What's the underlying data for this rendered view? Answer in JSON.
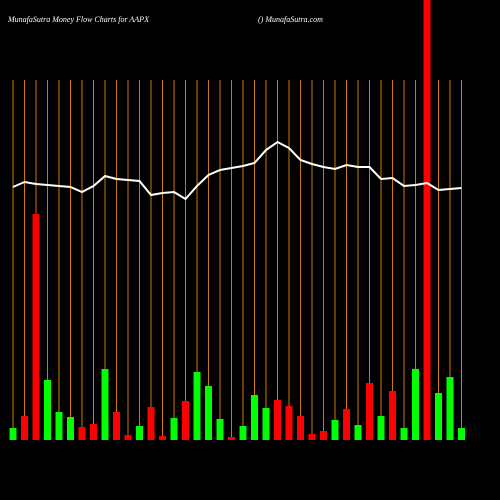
{
  "chart_data": {
    "type": "bar",
    "title": "MunafaSutra  Money Flow  Charts for AAPX",
    "subtitle": "() MunafaSutra.com",
    "ylim": [
      0,
      440
    ],
    "grid_color": "#cc7a00",
    "line_color": "#ffffff",
    "values": [
      12,
      24,
      226,
      60,
      28,
      23,
      13,
      16,
      71,
      28,
      5,
      14,
      33,
      4,
      22,
      39,
      68,
      54,
      21,
      3,
      14,
      45,
      32,
      40,
      34,
      24,
      6,
      9,
      20,
      31,
      15,
      57,
      24,
      49,
      12,
      71,
      440,
      47,
      63,
      12
    ],
    "bar_colors": [
      "#00ff00",
      "#ff0000",
      "#ff0000",
      "#00ff00",
      "#00ff00",
      "#00ff00",
      "#ff0000",
      "#ff0000",
      "#00ff00",
      "#ff0000",
      "#ff0000",
      "#00ff00",
      "#ff0000",
      "#ff0000",
      "#00ff00",
      "#ff0000",
      "#00ff00",
      "#00ff00",
      "#00ff00",
      "#ff0000",
      "#00ff00",
      "#00ff00",
      "#00ff00",
      "#ff0000",
      "#ff0000",
      "#ff0000",
      "#ff0000",
      "#ff0000",
      "#00ff00",
      "#ff0000",
      "#00ff00",
      "#ff0000",
      "#00ff00",
      "#ff0000",
      "#00ff00",
      "#00ff00",
      "#ff0000",
      "#00ff00",
      "#00ff00",
      "#00ff00"
    ],
    "line_values": [
      253,
      258,
      256,
      255,
      254,
      253,
      248,
      254,
      264,
      261,
      260,
      259,
      245,
      247,
      248,
      241,
      254,
      265,
      270,
      272,
      274,
      277,
      290,
      298,
      292,
      280,
      276,
      273,
      271,
      275,
      273,
      273,
      261,
      262,
      254,
      255,
      257,
      250,
      251,
      252
    ]
  }
}
